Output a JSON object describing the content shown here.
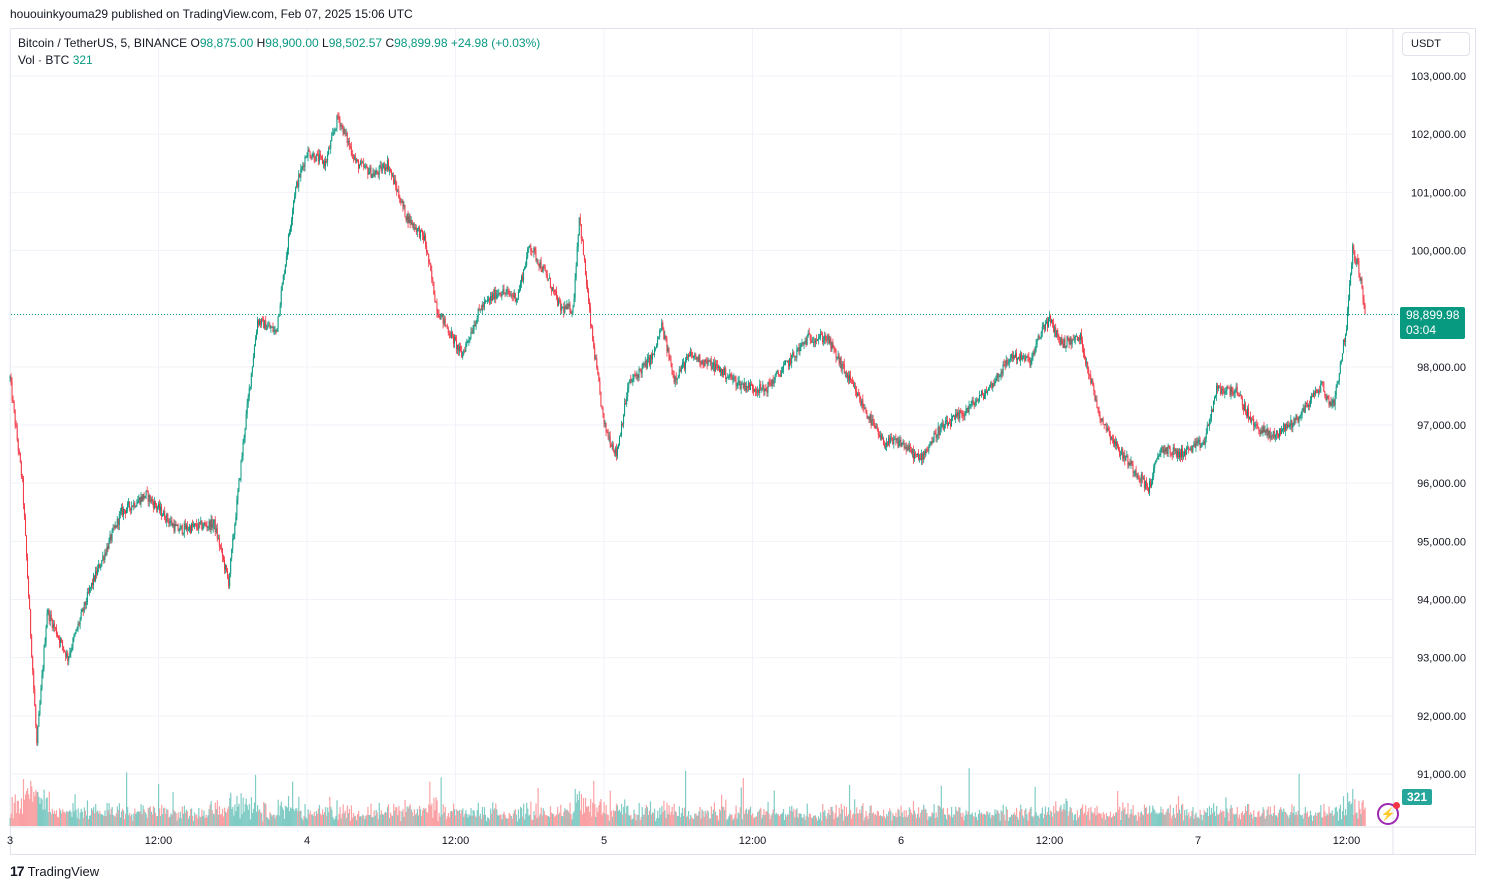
{
  "publisher_line": "hououinkyouma29 published on TradingView.com, Feb 07, 2025 15:06 UTC",
  "legend": {
    "symbol": "Bitcoin / TetherUS, 5, BINANCE",
    "o_label": "O",
    "o_value": "98,875.00",
    "h_label": "H",
    "h_value": "98,900.00",
    "l_label": "L",
    "l_value": "98,502.57",
    "c_label": "C",
    "c_value": "98,899.98",
    "change": "+24.98 (+0.03%)",
    "vol_label": "Vol · BTC",
    "vol_value": "321"
  },
  "currency_button": "USDT",
  "last_price": {
    "price": "98,899.98",
    "countdown": "03:04"
  },
  "volume_badge": "321",
  "footer": {
    "logo_glyph": "17",
    "brand": "TradingView"
  },
  "colors": {
    "up": "#089981",
    "down": "#f23645",
    "vol_up": "#80cbc4",
    "vol_down": "#faa1a4",
    "grid": "#f0f3fa",
    "accent": "#9c27b0"
  },
  "chart_data": {
    "type": "candlestick",
    "symbol": "BTCUSDT",
    "interval_minutes": 5,
    "y_ticks": [
      "103,000.00",
      "102,000.00",
      "101,000.00",
      "100,000.00",
      "98,000.00",
      "97,000.00",
      "96,000.00",
      "95,000.00",
      "94,000.00",
      "93,000.00",
      "92,000.00",
      "91,000.00"
    ],
    "x_ticks": [
      "3",
      "12:00",
      "4",
      "12:00",
      "5",
      "12:00",
      "6",
      "12:00",
      "7",
      "12:00"
    ],
    "ylim": [
      90000,
      103000
    ],
    "path_keypoints": [
      {
        "t": "Feb 3 00:00",
        "price": 97800
      },
      {
        "t": "Feb 3 01:00",
        "price": 96000
      },
      {
        "t": "Feb 3 02:10",
        "price": 91500
      },
      {
        "t": "Feb 3 03:00",
        "price": 93800
      },
      {
        "t": "Feb 3 04:40",
        "price": 93000
      },
      {
        "t": "Feb 3 06:30",
        "price": 94200
      },
      {
        "t": "Feb 3 09:00",
        "price": 95500
      },
      {
        "t": "Feb 3 11:00",
        "price": 95800
      },
      {
        "t": "Feb 3 13:30",
        "price": 95200
      },
      {
        "t": "Feb 3 16:30",
        "price": 95300
      },
      {
        "t": "Feb 3 17:40",
        "price": 94300
      },
      {
        "t": "Feb 3 19:00",
        "price": 97000
      },
      {
        "t": "Feb 3 20:00",
        "price": 98800
      },
      {
        "t": "Feb 3 21:30",
        "price": 98600
      },
      {
        "t": "Feb 3 23:00",
        "price": 101000
      },
      {
        "t": "Feb 4 00:00",
        "price": 101700
      },
      {
        "t": "Feb 4 01:30",
        "price": 101500
      },
      {
        "t": "Feb 4 02:30",
        "price": 102300
      },
      {
        "t": "Feb 4 04:00",
        "price": 101500
      },
      {
        "t": "Feb 4 05:30",
        "price": 101300
      },
      {
        "t": "Feb 4 06:30",
        "price": 101500
      },
      {
        "t": "Feb 4 08:00",
        "price": 100600
      },
      {
        "t": "Feb 4 09:30",
        "price": 100200
      },
      {
        "t": "Feb 4 10:30",
        "price": 99000
      },
      {
        "t": "Feb 4 11:30",
        "price": 98600
      },
      {
        "t": "Feb 4 12:30",
        "price": 98200
      },
      {
        "t": "Feb 4 14:00",
        "price": 99000
      },
      {
        "t": "Feb 4 15:30",
        "price": 99300
      },
      {
        "t": "Feb 4 17:00",
        "price": 99200
      },
      {
        "t": "Feb 4 18:00",
        "price": 100100
      },
      {
        "t": "Feb 4 19:30",
        "price": 99500
      },
      {
        "t": "Feb 4 20:30",
        "price": 99000
      },
      {
        "t": "Feb 4 21:30",
        "price": 99000
      },
      {
        "t": "Feb 4 22:00",
        "price": 100600
      },
      {
        "t": "Feb 4 23:00",
        "price": 98600
      },
      {
        "t": "Feb 5 00:00",
        "price": 97000
      },
      {
        "t": "Feb 5 01:00",
        "price": 96500
      },
      {
        "t": "Feb 5 02:00",
        "price": 97700
      },
      {
        "t": "Feb 5 04:00",
        "price": 98200
      },
      {
        "t": "Feb 5 04:40",
        "price": 98700
      },
      {
        "t": "Feb 5 05:40",
        "price": 97800
      },
      {
        "t": "Feb 5 07:00",
        "price": 98200
      },
      {
        "t": "Feb 5 09:00",
        "price": 98000
      },
      {
        "t": "Feb 5 11:00",
        "price": 97700
      },
      {
        "t": "Feb 5 13:00",
        "price": 97600
      },
      {
        "t": "Feb 5 15:00",
        "price": 98100
      },
      {
        "t": "Feb 5 16:30",
        "price": 98500
      },
      {
        "t": "Feb 5 18:00",
        "price": 98500
      },
      {
        "t": "Feb 5 19:30",
        "price": 97900
      },
      {
        "t": "Feb 5 21:00",
        "price": 97300
      },
      {
        "t": "Feb 5 22:30",
        "price": 96700
      },
      {
        "t": "Feb 6 00:00",
        "price": 96700
      },
      {
        "t": "Feb 6 01:30",
        "price": 96400
      },
      {
        "t": "Feb 6 03:00",
        "price": 96900
      },
      {
        "t": "Feb 6 05:00",
        "price": 97200
      },
      {
        "t": "Feb 6 07:00",
        "price": 97600
      },
      {
        "t": "Feb 6 09:00",
        "price": 98200
      },
      {
        "t": "Feb 6 10:30",
        "price": 98100
      },
      {
        "t": "Feb 6 11:30",
        "price": 98700
      },
      {
        "t": "Feb 6 12:00",
        "price": 98800
      },
      {
        "t": "Feb 6 13:00",
        "price": 98400
      },
      {
        "t": "Feb 6 14:30",
        "price": 98500
      },
      {
        "t": "Feb 6 16:00",
        "price": 97200
      },
      {
        "t": "Feb 6 17:30",
        "price": 96600
      },
      {
        "t": "Feb 6 19:00",
        "price": 96200
      },
      {
        "t": "Feb 6 20:00",
        "price": 95900
      },
      {
        "t": "Feb 6 21:00",
        "price": 96600
      },
      {
        "t": "Feb 6 22:30",
        "price": 96500
      },
      {
        "t": "Feb 7 00:30",
        "price": 96700
      },
      {
        "t": "Feb 7 01:30",
        "price": 97600
      },
      {
        "t": "Feb 7 03:00",
        "price": 97600
      },
      {
        "t": "Feb 7 04:30",
        "price": 97000
      },
      {
        "t": "Feb 7 06:00",
        "price": 96800
      },
      {
        "t": "Feb 7 08:00",
        "price": 97100
      },
      {
        "t": "Feb 7 10:00",
        "price": 97700
      },
      {
        "t": "Feb 7 10:30",
        "price": 97400
      },
      {
        "t": "Feb 7 11:00",
        "price": 97400
      },
      {
        "t": "Feb 7 12:00",
        "price": 98700
      },
      {
        "t": "Feb 7 12:30",
        "price": 100000
      },
      {
        "t": "Feb 7 13:00",
        "price": 99700
      },
      {
        "t": "Feb 7 13:30",
        "price": 98900
      }
    ],
    "last_close": 98899.98,
    "grid": true
  }
}
